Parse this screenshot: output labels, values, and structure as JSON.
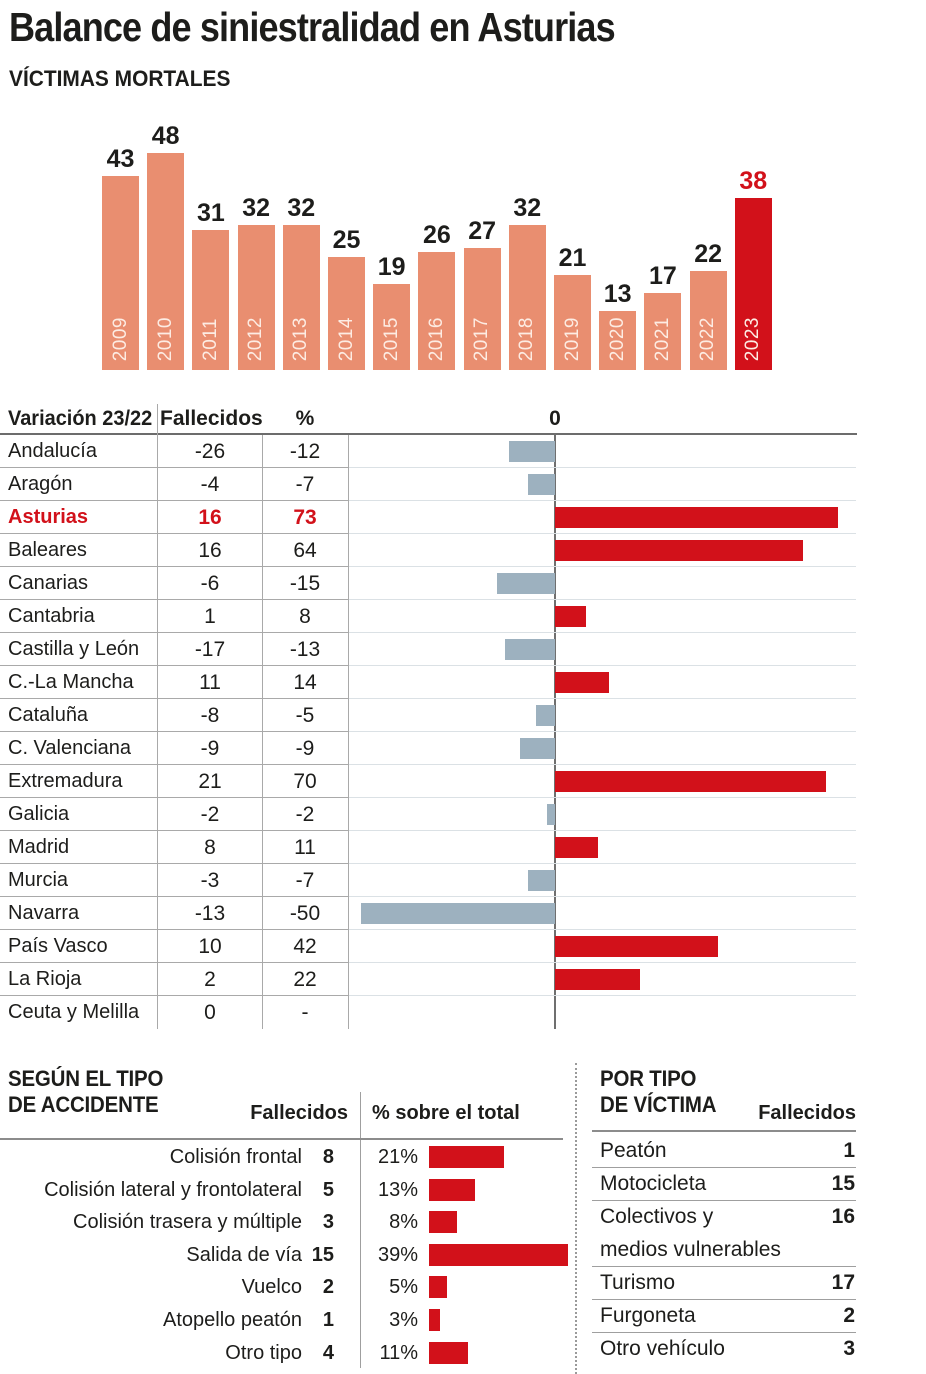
{
  "title": "Balance de siniestralidad en Asturias",
  "colors": {
    "salmon": "#e98e70",
    "red": "#d2111a",
    "gray_blue": "#9db1bf"
  },
  "chart_data": [
    {
      "id": "victimas-mortales-anuales",
      "type": "bar",
      "title": "VÍCTIMAS MORTALES",
      "categories": [
        "2009",
        "2010",
        "2011",
        "2012",
        "2013",
        "2014",
        "2015",
        "2016",
        "2017",
        "2018",
        "2019",
        "2020",
        "2021",
        "2022",
        "2023"
      ],
      "values": [
        43,
        48,
        31,
        32,
        32,
        25,
        19,
        26,
        27,
        32,
        21,
        13,
        17,
        22,
        38
      ],
      "highlight_category": "2023",
      "bar_color": "#e98e70",
      "highlight_color": "#d2111a",
      "ylim": [
        0,
        50
      ],
      "grid": false,
      "legend": "none"
    },
    {
      "id": "variacion-23-22",
      "type": "bar",
      "orientation": "horizontal",
      "columns": [
        "Variación 23/22",
        "Fallecidos",
        "%"
      ],
      "axis_zero_label": "0",
      "xlim": [
        -52,
        78
      ],
      "positive_color": "#d2111a",
      "negative_color": "#9db1bf",
      "rows": [
        {
          "region": "Andalucía",
          "fallecidos": -26,
          "pct": -12
        },
        {
          "region": "Aragón",
          "fallecidos": -4,
          "pct": -7
        },
        {
          "region": "Asturias",
          "fallecidos": 16,
          "pct": 73,
          "highlight": true
        },
        {
          "region": "Baleares",
          "fallecidos": 16,
          "pct": 64
        },
        {
          "region": "Canarias",
          "fallecidos": -6,
          "pct": -15
        },
        {
          "region": "Cantabria",
          "fallecidos": 1,
          "pct": 8
        },
        {
          "region": "Castilla y León",
          "fallecidos": -17,
          "pct": -13
        },
        {
          "region": "C.-La Mancha",
          "fallecidos": 11,
          "pct": 14
        },
        {
          "region": "Cataluña",
          "fallecidos": -8,
          "pct": -5
        },
        {
          "region": "C. Valenciana",
          "fallecidos": -9,
          "pct": -9
        },
        {
          "region": "Extremadura",
          "fallecidos": 21,
          "pct": 70
        },
        {
          "region": "Galicia",
          "fallecidos": -2,
          "pct": -2
        },
        {
          "region": "Madrid",
          "fallecidos": 8,
          "pct": 11
        },
        {
          "region": "Murcia",
          "fallecidos": -3,
          "pct": -7
        },
        {
          "region": "Navarra",
          "fallecidos": -13,
          "pct": -50
        },
        {
          "region": "País Vasco",
          "fallecidos": 10,
          "pct": 42
        },
        {
          "region": "La Rioja",
          "fallecidos": 2,
          "pct": 22
        },
        {
          "region": "Ceuta y Melilla",
          "fallecidos": 0,
          "pct": null,
          "pct_display": "-"
        }
      ]
    },
    {
      "id": "segun-tipo-accidente",
      "type": "bar",
      "orientation": "horizontal",
      "title": "SEGÚN EL TIPO DE ACCIDENTE",
      "title_lines": [
        "SEGÚN EL TIPO",
        "DE ACCIDENTE"
      ],
      "columns": [
        "Fallecidos",
        "% sobre el total"
      ],
      "bar_color": "#d2111a",
      "rows": [
        {
          "label": "Colisión frontal",
          "fallecidos": 8,
          "pct": 21,
          "pct_display": "21%"
        },
        {
          "label": "Colisión lateral y frontolateral",
          "fallecidos": 5,
          "pct": 13,
          "pct_display": "13%"
        },
        {
          "label": "Colisión trasera y múltiple",
          "fallecidos": 3,
          "pct": 8,
          "pct_display": "8%"
        },
        {
          "label": "Salida de vía",
          "fallecidos": 15,
          "pct": 39,
          "pct_display": "39%"
        },
        {
          "label": "Vuelco",
          "fallecidos": 2,
          "pct": 5,
          "pct_display": "5%"
        },
        {
          "label": "Atopello peatón",
          "fallecidos": 1,
          "pct": 3,
          "pct_display": "3%"
        },
        {
          "label": "Otro tipo",
          "fallecidos": 4,
          "pct": 11,
          "pct_display": "11%"
        }
      ]
    },
    {
      "id": "por-tipo-victima",
      "type": "table",
      "title": "POR TIPO DE VÍCTIMA",
      "title_lines": [
        "POR TIPO",
        "DE VÍCTIMA"
      ],
      "columns": [
        "Fallecidos"
      ],
      "rows": [
        {
          "label": "Peatón",
          "fallecidos": 1
        },
        {
          "label": "Motocicleta",
          "fallecidos": 15
        },
        {
          "label": "Colectivos y medios vulnerables",
          "label_lines": [
            "Colectivos y",
            "medios vulnerables"
          ],
          "fallecidos": 16
        },
        {
          "label": "Turismo",
          "fallecidos": 17
        },
        {
          "label": "Furgoneta",
          "fallecidos": 2
        },
        {
          "label": "Otro vehículo",
          "fallecidos": 3
        }
      ]
    }
  ]
}
